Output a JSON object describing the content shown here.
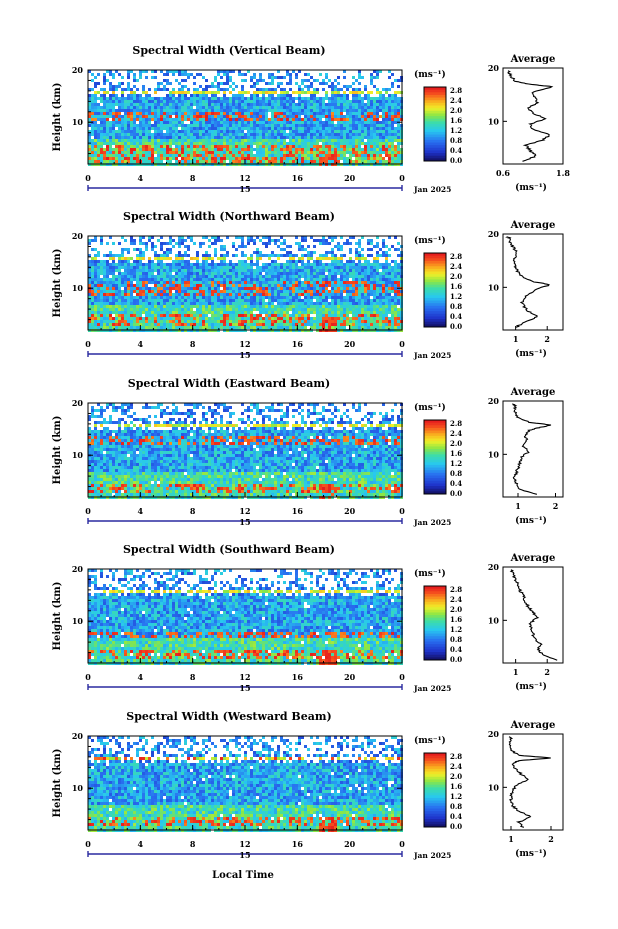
{
  "chart_data": {
    "type": "heatmap",
    "date_label": "Jan 2025",
    "day_label": "15",
    "xlabel": "Local Time",
    "ylabel": "Height (km)",
    "x_ticks": [
      "0",
      "4",
      "8",
      "12",
      "16",
      "20",
      "0"
    ],
    "xlim": [
      0,
      24
    ],
    "y_ticks": [
      "20",
      "10"
    ],
    "ylim": [
      2,
      20
    ],
    "colorbar": {
      "unit": "(ms⁻¹)",
      "ticks": [
        "2.8",
        "2.4",
        "2.0",
        "1.6",
        "1.2",
        "0.8",
        "0.4",
        "0.0"
      ],
      "range": [
        0,
        2.8
      ]
    },
    "average_title": "Average",
    "average_xlabel": "(ms⁻¹)",
    "panels": [
      {
        "title": "Spectral Width (Vertical Beam)",
        "avg_ticks": [
          "0.6",
          "1.8"
        ],
        "avg_xlim": [
          0.6,
          1.8
        ],
        "avg_profile": [
          [
            2.5,
            1.0
          ],
          [
            3.5,
            1.25
          ],
          [
            4.5,
            1.15
          ],
          [
            5.5,
            1.05
          ],
          [
            6.5,
            1.4
          ],
          [
            7.5,
            1.55
          ],
          [
            8.5,
            1.2
          ],
          [
            9.5,
            1.15
          ],
          [
            10.5,
            1.45
          ],
          [
            11.5,
            1.2
          ],
          [
            12.5,
            1.1
          ],
          [
            13.5,
            1.3
          ],
          [
            14.5,
            1.25
          ],
          [
            15.5,
            1.2
          ],
          [
            16.5,
            1.6
          ],
          [
            17.0,
            1.1
          ],
          [
            17.5,
            0.85
          ],
          [
            18.5,
            0.75
          ],
          [
            19.5,
            0.7
          ]
        ]
      },
      {
        "title": "Spectral Width (Northward Beam)",
        "avg_ticks": [
          "1",
          "2"
        ],
        "avg_xlim": [
          0.6,
          2.5
        ],
        "avg_profile": [
          [
            2.5,
            1.0
          ],
          [
            3.5,
            1.3
          ],
          [
            4.5,
            1.7
          ],
          [
            5.5,
            1.4
          ],
          [
            6.5,
            1.25
          ],
          [
            7.5,
            1.2
          ],
          [
            8.5,
            1.35
          ],
          [
            9.5,
            1.6
          ],
          [
            10.5,
            2.1
          ],
          [
            11.0,
            1.6
          ],
          [
            12.0,
            1.2
          ],
          [
            13.0,
            1.05
          ],
          [
            14.0,
            1.0
          ],
          [
            15.0,
            0.95
          ],
          [
            16.0,
            1.05
          ],
          [
            17.0,
            1.0
          ],
          [
            18.0,
            0.85
          ],
          [
            19.0,
            0.8
          ],
          [
            19.5,
            0.75
          ]
        ]
      },
      {
        "title": "Spectral Width (Eastward Beam)",
        "avg_ticks": [
          "1",
          "2"
        ],
        "avg_xlim": [
          0.6,
          2.2
        ],
        "avg_profile": [
          [
            2.5,
            1.5
          ],
          [
            3.5,
            1.05
          ],
          [
            4.5,
            0.95
          ],
          [
            5.5,
            0.9
          ],
          [
            6.5,
            0.95
          ],
          [
            7.5,
            1.0
          ],
          [
            8.5,
            1.05
          ],
          [
            9.5,
            1.1
          ],
          [
            10.5,
            1.3
          ],
          [
            11.5,
            1.15
          ],
          [
            12.5,
            1.25
          ],
          [
            13.5,
            1.2
          ],
          [
            14.5,
            1.3
          ],
          [
            15.0,
            1.55
          ],
          [
            15.5,
            1.9
          ],
          [
            16.0,
            1.3
          ],
          [
            17.0,
            1.0
          ],
          [
            18.0,
            0.9
          ],
          [
            19.0,
            0.95
          ],
          [
            19.5,
            0.85
          ]
        ]
      },
      {
        "title": "Spectral Width (Southward Beam)",
        "avg_ticks": [
          "1",
          "2"
        ],
        "avg_xlim": [
          0.6,
          2.5
        ],
        "avg_profile": [
          [
            2.5,
            2.3
          ],
          [
            3.5,
            1.9
          ],
          [
            4.5,
            1.7
          ],
          [
            5.5,
            1.8
          ],
          [
            6.5,
            1.6
          ],
          [
            7.5,
            1.55
          ],
          [
            8.5,
            1.5
          ],
          [
            9.5,
            1.45
          ],
          [
            10.5,
            1.7
          ],
          [
            11.5,
            1.55
          ],
          [
            12.5,
            1.4
          ],
          [
            13.5,
            1.3
          ],
          [
            14.5,
            1.25
          ],
          [
            15.5,
            1.15
          ],
          [
            16.5,
            1.1
          ],
          [
            17.5,
            1.0
          ],
          [
            18.5,
            0.95
          ],
          [
            19.5,
            0.85
          ]
        ]
      },
      {
        "title": "Spectral Width (Westward Beam)",
        "avg_ticks": [
          "1",
          "2"
        ],
        "avg_xlim": [
          0.8,
          2.3
        ],
        "avg_profile": [
          [
            2.5,
            1.3
          ],
          [
            3.5,
            1.2
          ],
          [
            4.5,
            1.5
          ],
          [
            5.5,
            1.2
          ],
          [
            6.5,
            1.05
          ],
          [
            7.5,
            1.0
          ],
          [
            8.5,
            1.0
          ],
          [
            9.5,
            1.05
          ],
          [
            10.5,
            1.15
          ],
          [
            11.5,
            1.45
          ],
          [
            12.5,
            1.25
          ],
          [
            13.5,
            1.1
          ],
          [
            14.5,
            1.05
          ],
          [
            15.0,
            1.2
          ],
          [
            15.5,
            2.0
          ],
          [
            16.0,
            1.2
          ],
          [
            17.0,
            1.0
          ],
          [
            18.0,
            0.95
          ],
          [
            19.0,
            1.0
          ],
          [
            19.5,
            0.95
          ]
        ]
      }
    ]
  }
}
